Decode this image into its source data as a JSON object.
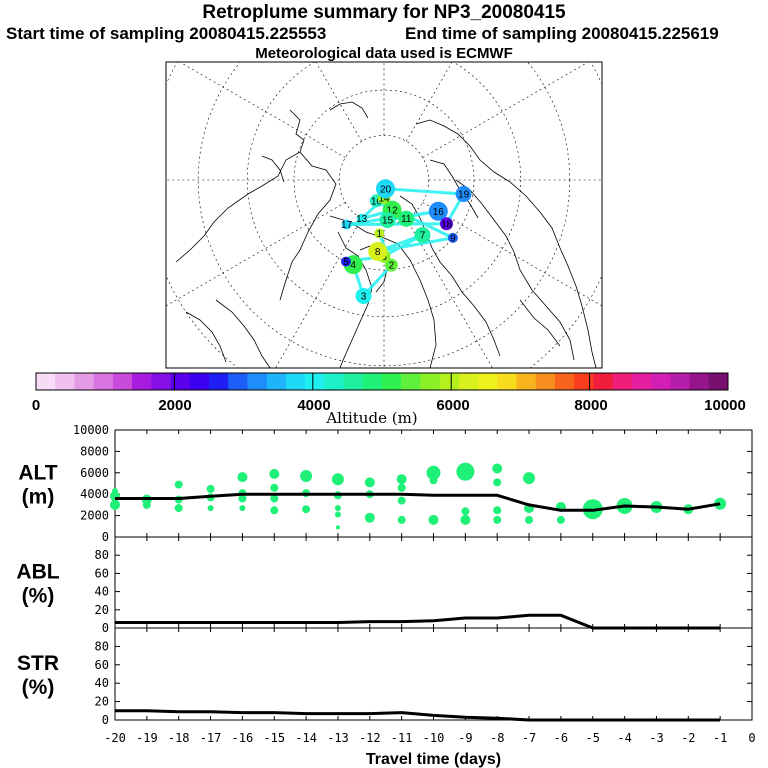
{
  "header": {
    "title": "Retroplume summary for NP3_20080415",
    "start": "Start time of sampling 20080415.225553",
    "end": "End time of sampling 20080415.225619",
    "met": "Meteorological data used is ECMWF"
  },
  "colorbar": {
    "ticks": [
      "0",
      "2000",
      "4000",
      "6000",
      "8000",
      "10000"
    ],
    "label": "Altitude (m)",
    "colors": [
      "#f7dcf7",
      "#f0c0f0",
      "#e49be6",
      "#d875e0",
      "#c94bdc",
      "#a81ce0",
      "#8410e4",
      "#5a00ea",
      "#3c00f0",
      "#1f1ff5",
      "#1e5ef8",
      "#1e8cfa",
      "#1eb4fa",
      "#1ed8f8",
      "#1ef0f0",
      "#1ef0c8",
      "#1ef0a0",
      "#1ef078",
      "#30f050",
      "#60f03c",
      "#8cf028",
      "#b4f01e",
      "#d8f01e",
      "#f0f01e",
      "#f8dc1e",
      "#f8b41e",
      "#f88c1e",
      "#f8641e",
      "#f83c1e",
      "#f01e3c",
      "#f01e78",
      "#e61ea0",
      "#d21eb4",
      "#b41eaa",
      "#96148c",
      "#781070"
    ]
  },
  "chart_data": [
    {
      "type": "map",
      "name": "retroplume-map",
      "projection": "north-polar-stereographic",
      "clusters": [
        {
          "label": "1",
          "lon": -5,
          "lat": 78,
          "alt": 6000
        },
        {
          "label": "2",
          "lon": 5,
          "lat": 71,
          "alt": 5500
        },
        {
          "label": "3",
          "lon": -10,
          "lat": 64,
          "alt": 4000
        },
        {
          "label": "4",
          "lon": -20,
          "lat": 70,
          "alt": 5000
        },
        {
          "label": "5",
          "lon": -25,
          "lat": 70,
          "alt": 2500
        },
        {
          "label": "6",
          "lon": 0,
          "lat": 73,
          "alt": 5800
        },
        {
          "label": "7",
          "lon": 35,
          "lat": 75,
          "alt": 4500
        },
        {
          "label": "8",
          "lon": -5,
          "lat": 74,
          "alt": 6300
        },
        {
          "label": "9",
          "lon": 50,
          "lat": 70,
          "alt": 3000
        },
        {
          "label": "10",
          "lon": -20,
          "lat": 85,
          "alt": 4200
        },
        {
          "label": "11",
          "lon": 30,
          "lat": 80,
          "alt": 4800
        },
        {
          "label": "12",
          "lon": 15,
          "lat": 83,
          "alt": 5200
        },
        {
          "label": "13",
          "lon": -30,
          "lat": 80,
          "alt": 4100
        },
        {
          "label": "14",
          "lon": 0,
          "lat": 86,
          "alt": 5600
        },
        {
          "label": "15",
          "lon": 5,
          "lat": 81,
          "alt": 4500
        },
        {
          "label": "16",
          "lon": 60,
          "lat": 76,
          "alt": 3300
        },
        {
          "label": "17",
          "lon": -40,
          "lat": 77,
          "alt": 3800
        },
        {
          "label": "18",
          "lon": 55,
          "lat": 73,
          "alt": 2000
        },
        {
          "label": "19",
          "lon": 80,
          "lat": 72,
          "alt": 3200
        },
        {
          "label": "20",
          "lon": 10,
          "lat": 88,
          "alt": 3800
        }
      ]
    },
    {
      "type": "scatter+line",
      "name": "alt-panel",
      "ylabel": "ALT\n(m)",
      "ylim": [
        0,
        10000
      ],
      "yticks": [
        "10000",
        "8000",
        "6000",
        "4000",
        "2000",
        "0"
      ],
      "line": {
        "x": [
          -20,
          -19,
          -18,
          -17,
          -16,
          -15,
          -14,
          -13,
          -12,
          -11,
          -10,
          -9,
          -8,
          -7,
          -6,
          -5,
          -4,
          -3,
          -2,
          -1
        ],
        "y": [
          3600,
          3600,
          3600,
          3800,
          4000,
          4000,
          4000,
          4000,
          4000,
          4000,
          3900,
          3900,
          3900,
          3000,
          2500,
          2500,
          2900,
          2800,
          2600,
          3100
        ]
      },
      "points": [
        {
          "x": -20,
          "y": 3800,
          "s": 5
        },
        {
          "x": -20,
          "y": 3000,
          "s": 5
        },
        {
          "x": -20,
          "y": 4300,
          "s": 3
        },
        {
          "x": -19,
          "y": 3500,
          "s": 5
        },
        {
          "x": -19,
          "y": 3000,
          "s": 4
        },
        {
          "x": -18,
          "y": 4900,
          "s": 4
        },
        {
          "x": -18,
          "y": 3500,
          "s": 4
        },
        {
          "x": -18,
          "y": 2700,
          "s": 4
        },
        {
          "x": -17,
          "y": 4500,
          "s": 4
        },
        {
          "x": -17,
          "y": 3700,
          "s": 4
        },
        {
          "x": -17,
          "y": 2700,
          "s": 3
        },
        {
          "x": -16,
          "y": 5600,
          "s": 5
        },
        {
          "x": -16,
          "y": 4100,
          "s": 4
        },
        {
          "x": -16,
          "y": 3600,
          "s": 4
        },
        {
          "x": -16,
          "y": 2700,
          "s": 3
        },
        {
          "x": -15,
          "y": 5900,
          "s": 5
        },
        {
          "x": -15,
          "y": 4600,
          "s": 4
        },
        {
          "x": -15,
          "y": 3600,
          "s": 4
        },
        {
          "x": -15,
          "y": 2500,
          "s": 4
        },
        {
          "x": -14,
          "y": 5700,
          "s": 6
        },
        {
          "x": -14,
          "y": 4100,
          "s": 4
        },
        {
          "x": -14,
          "y": 2600,
          "s": 4
        },
        {
          "x": -13,
          "y": 5400,
          "s": 6
        },
        {
          "x": -13,
          "y": 3900,
          "s": 4
        },
        {
          "x": -13,
          "y": 2700,
          "s": 3
        },
        {
          "x": -13,
          "y": 2100,
          "s": 3
        },
        {
          "x": -13,
          "y": 900,
          "s": 2
        },
        {
          "x": -12,
          "y": 5100,
          "s": 5
        },
        {
          "x": -12,
          "y": 4000,
          "s": 4
        },
        {
          "x": -12,
          "y": 1800,
          "s": 5
        },
        {
          "x": -11,
          "y": 5400,
          "s": 5
        },
        {
          "x": -11,
          "y": 4600,
          "s": 4
        },
        {
          "x": -11,
          "y": 3400,
          "s": 4
        },
        {
          "x": -11,
          "y": 1600,
          "s": 4
        },
        {
          "x": -10,
          "y": 6000,
          "s": 7
        },
        {
          "x": -10,
          "y": 5300,
          "s": 4
        },
        {
          "x": -10,
          "y": 1600,
          "s": 5
        },
        {
          "x": -9,
          "y": 6100,
          "s": 9
        },
        {
          "x": -9,
          "y": 2400,
          "s": 4
        },
        {
          "x": -9,
          "y": 1600,
          "s": 5
        },
        {
          "x": -8,
          "y": 6400,
          "s": 5
        },
        {
          "x": -8,
          "y": 5100,
          "s": 4
        },
        {
          "x": -8,
          "y": 2500,
          "s": 4
        },
        {
          "x": -8,
          "y": 1600,
          "s": 4
        },
        {
          "x": -7,
          "y": 5500,
          "s": 6
        },
        {
          "x": -7,
          "y": 2700,
          "s": 5
        },
        {
          "x": -7,
          "y": 1600,
          "s": 4
        },
        {
          "x": -6,
          "y": 2800,
          "s": 5
        },
        {
          "x": -6,
          "y": 1600,
          "s": 4
        },
        {
          "x": -5,
          "y": 2600,
          "s": 10
        },
        {
          "x": -4,
          "y": 2900,
          "s": 8
        },
        {
          "x": -3,
          "y": 2800,
          "s": 6
        },
        {
          "x": -2,
          "y": 2600,
          "s": 5
        },
        {
          "x": -1,
          "y": 3100,
          "s": 6
        }
      ],
      "point_color": "#1ef078"
    },
    {
      "type": "line",
      "name": "abl-panel",
      "ylabel": "ABL\n(%)",
      "ylim": [
        0,
        100
      ],
      "yticks": [
        "80",
        "60",
        "40",
        "20",
        "0"
      ],
      "x": [
        -20,
        -19,
        -18,
        -17,
        -16,
        -15,
        -14,
        -13,
        -12,
        -11,
        -10,
        -9,
        -8,
        -7,
        -6,
        -5,
        -4,
        -3,
        -2,
        -1
      ],
      "y": [
        6,
        6,
        6,
        6,
        6,
        6,
        6,
        6,
        7,
        7,
        8,
        11,
        11,
        14,
        14,
        0,
        0,
        0,
        0,
        0
      ]
    },
    {
      "type": "line",
      "name": "str-panel",
      "ylabel": "STR\n(%)",
      "ylim": [
        0,
        100
      ],
      "yticks": [
        "80",
        "60",
        "40",
        "20",
        "0"
      ],
      "x": [
        -20,
        -19,
        -18,
        -17,
        -16,
        -15,
        -14,
        -13,
        -12,
        -11,
        -10,
        -9,
        -8,
        -7,
        -6,
        -5,
        -4,
        -3,
        -2,
        -1
      ],
      "y": [
        10,
        10,
        9,
        9,
        8,
        8,
        7,
        7,
        7,
        8,
        5,
        3,
        2,
        0,
        0,
        0,
        0,
        0,
        0,
        0
      ],
      "xticks": [
        "-20",
        "-19",
        "-18",
        "-17",
        "-16",
        "-15",
        "-14",
        "-13",
        "-12",
        "-11",
        "-10",
        "-9",
        "-8",
        "-7",
        "-6",
        "-5",
        "-4",
        "-3",
        "-2",
        "-1",
        "0"
      ],
      "xlabel": "Travel time (days)"
    }
  ]
}
